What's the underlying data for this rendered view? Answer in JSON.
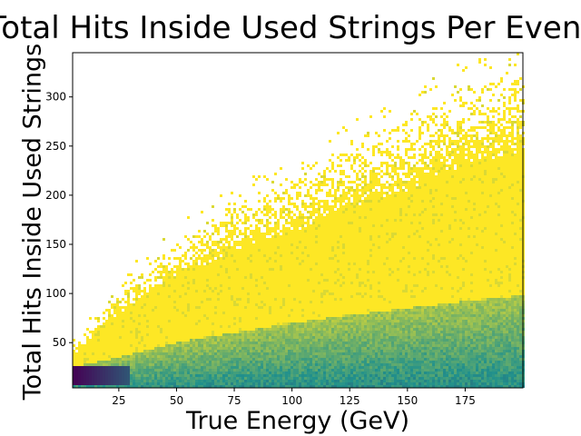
{
  "chart_data": {
    "type": "heatmap",
    "title": "Total Hits Inside Used Strings Per Event",
    "xlabel": "True Energy (GeV)",
    "ylabel": "Total Hits Inside Used Strings",
    "xlim": [
      5,
      200
    ],
    "ylim": [
      4,
      345
    ],
    "xticks": [
      25,
      50,
      75,
      100,
      125,
      150,
      175
    ],
    "yticks": [
      50,
      100,
      150,
      200,
      250,
      300
    ],
    "colormap": "viridis",
    "colors": {
      "low": "#fde725",
      "mid": "#21918c",
      "high": "#440154"
    },
    "grid": false,
    "legend": "none",
    "hits_upper_envelope": {
      "x": [
        5,
        25,
        50,
        75,
        100,
        125,
        150,
        175,
        200
      ],
      "y": [
        50,
        110,
        160,
        200,
        225,
        260,
        285,
        320,
        340
      ]
    },
    "dense_band_upper": {
      "x": [
        5,
        25,
        50,
        75,
        100,
        125,
        150,
        175,
        200
      ],
      "y": [
        25,
        35,
        50,
        60,
        70,
        78,
        85,
        92,
        98
      ]
    },
    "peak_density_region": {
      "x": [
        5,
        30
      ],
      "y": [
        8,
        25
      ]
    }
  }
}
